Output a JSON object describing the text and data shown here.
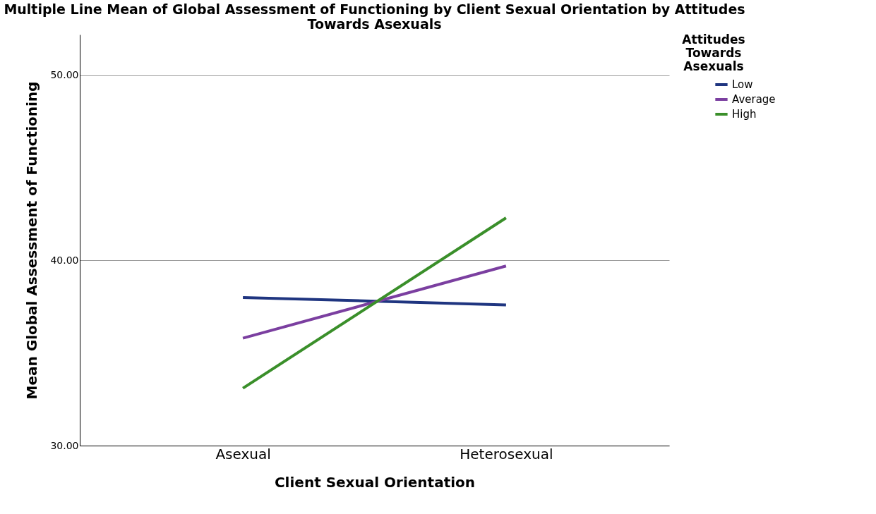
{
  "chart_data": {
    "type": "line",
    "title": "Multiple Line Mean of Global Assessment of Functioning by Client Sexual Orientation by Attitudes Towards Asexuals",
    "xlabel": "Client Sexual Orientation",
    "ylabel": "Mean Global Assessment of Functioning",
    "legend_title": "Attitudes Towards Asexuals",
    "categories": [
      "Asexual",
      "Heterosexual"
    ],
    "series": [
      {
        "name": "Low",
        "color": "#1f3580",
        "values": [
          38.0,
          37.6
        ]
      },
      {
        "name": "Average",
        "color": "#7b3fa0",
        "values": [
          35.8,
          39.7
        ]
      },
      {
        "name": "High",
        "color": "#3a8f2a",
        "values": [
          33.1,
          42.3
        ]
      }
    ],
    "ylim": [
      30,
      52.2
    ],
    "yticks": [
      {
        "value": 30,
        "label": "30.00"
      },
      {
        "value": 40,
        "label": "40.00"
      },
      {
        "value": 50,
        "label": "50.00"
      }
    ],
    "grid": "y",
    "legend": "top right",
    "marker": "none",
    "line_style": "solid"
  }
}
